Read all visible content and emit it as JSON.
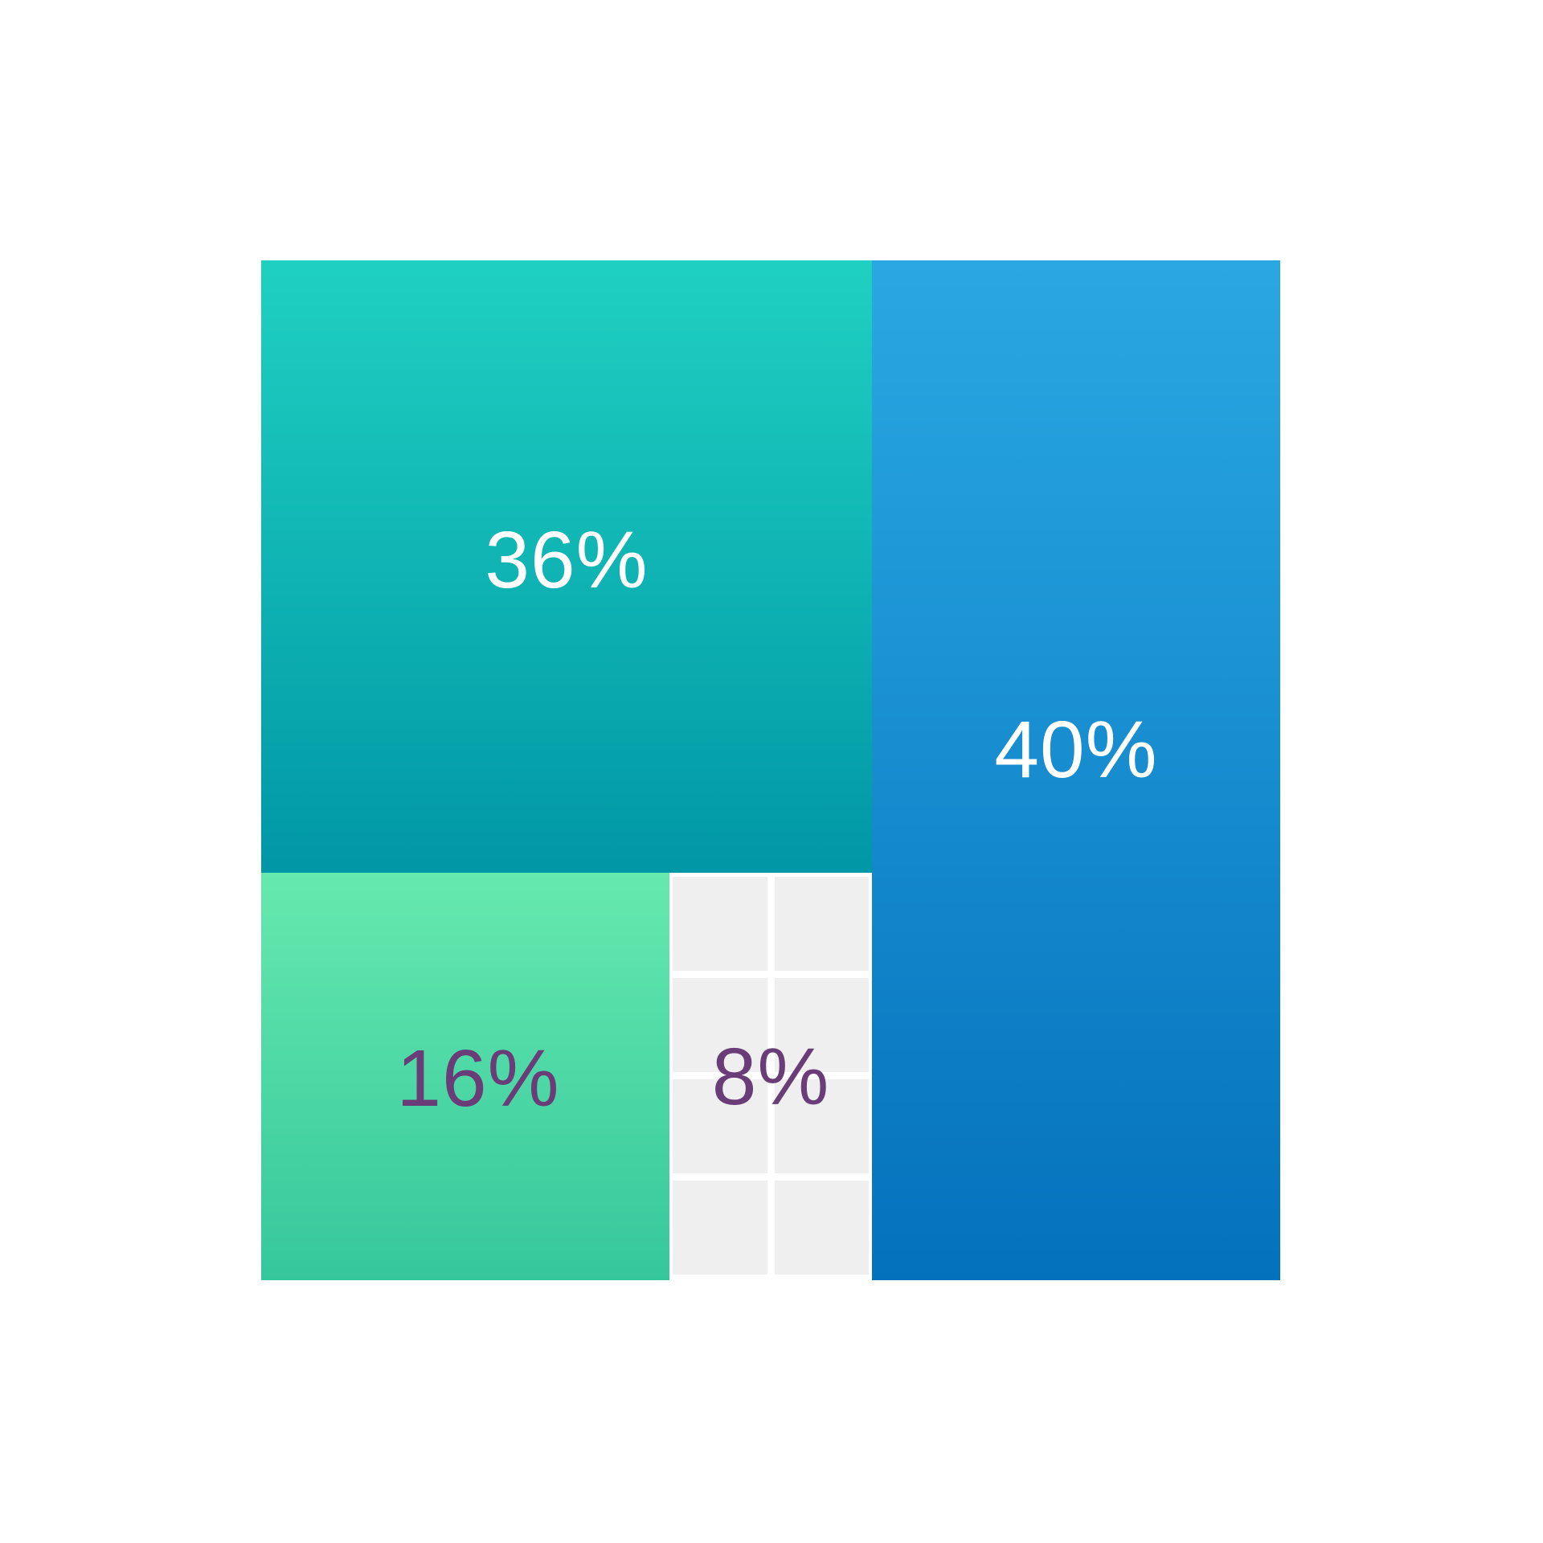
{
  "page": {
    "background_color": "#ffffff",
    "description": "Waffle treemap percentage infographic on a 10x10 grid (1 cell = 1%)"
  },
  "chart_data": {
    "type": "treemap",
    "layout": "10x10 waffle grid, 1268x1269 px square, centered on white canvas",
    "total": 100,
    "unit": "%",
    "legend_position": "none",
    "grid": "off (except 8% segment rendered as individual 1% cells)",
    "segments": [
      {
        "label": "36%",
        "value": 36,
        "cells": "6x6 block, top-left",
        "gradient_top": "#1fd1c1",
        "gradient_bottom": "#0097a6",
        "label_color": "#ffffff"
      },
      {
        "label": "40%",
        "value": 40,
        "cells": "4x10 column, right side, full height",
        "gradient_top": "#2aa8e3",
        "gradient_bottom": "#0471bc",
        "label_color": "#ffffff"
      },
      {
        "label": "16%",
        "value": 16,
        "cells": "4x4 block, bottom-left",
        "gradient_top": "#66e9ae",
        "gradient_bottom": "#35c79c",
        "label_color": "#6a3c78"
      },
      {
        "label": "8%",
        "value": 8,
        "cells": "2x4 grid of 8 individual gray cells with white gutters",
        "cell_color": "#efefef",
        "gutter_color": "#ffffff",
        "label_color": "#6a3c78"
      }
    ]
  }
}
